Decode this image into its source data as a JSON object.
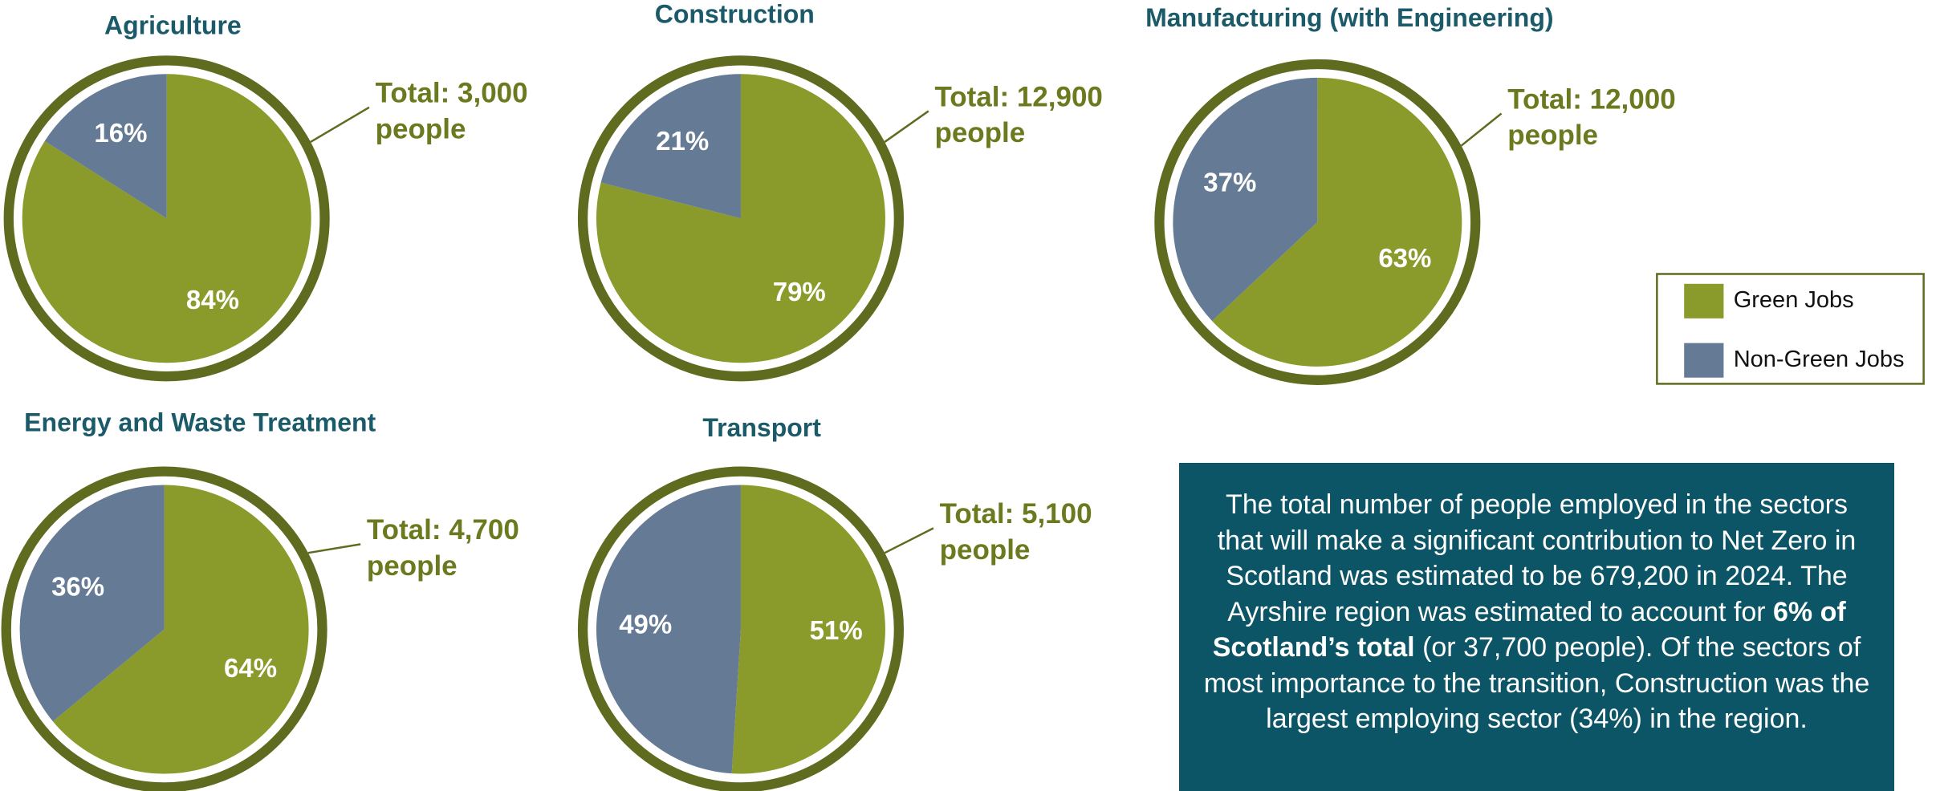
{
  "chart_data": [
    {
      "type": "pie",
      "title": "Agriculture",
      "annotation": [
        "Total: 3,000",
        "people"
      ],
      "values": [
        84,
        16
      ],
      "value_labels": [
        "84%",
        "16%"
      ]
    },
    {
      "type": "pie",
      "title": "Construction",
      "annotation": [
        "Total: 12,900",
        "people"
      ],
      "values": [
        79,
        21
      ],
      "value_labels": [
        "79%",
        "21%"
      ]
    },
    {
      "type": "pie",
      "title": "Manufacturing (with Engineering)",
      "annotation": [
        "Total: 12,000",
        "people"
      ],
      "values": [
        63,
        37
      ],
      "value_labels": [
        "63%",
        "37%"
      ]
    },
    {
      "type": "pie",
      "title": "Energy and Waste Treatment",
      "annotation": [
        "Total: 4,700",
        "people"
      ],
      "values": [
        64,
        36
      ],
      "value_labels": [
        "64%",
        "36%"
      ]
    },
    {
      "type": "pie",
      "title": "Transport",
      "annotation": [
        "Total: 5,100",
        "people"
      ],
      "values": [
        51,
        49
      ],
      "value_labels": [
        "51%",
        "49%"
      ]
    }
  ],
  "legend": {
    "items": [
      {
        "name": "Green Jobs",
        "color": "#8a9b2b"
      },
      {
        "name": "Non-Green Jobs",
        "color": "#657a94"
      }
    ]
  },
  "note": {
    "before": "The total number of people employed in the sectors that will make a significant contribution to Net Zero in Scotland was estimated to be 679,200 in 2024. The Ayrshire region was estimated to account for ",
    "bold": "6% of Scotland’s total",
    "after": " (or 37,700 people). Of the sectors of most importance to the transition, Construction was the largest employing sector (34%) in the region."
  }
}
